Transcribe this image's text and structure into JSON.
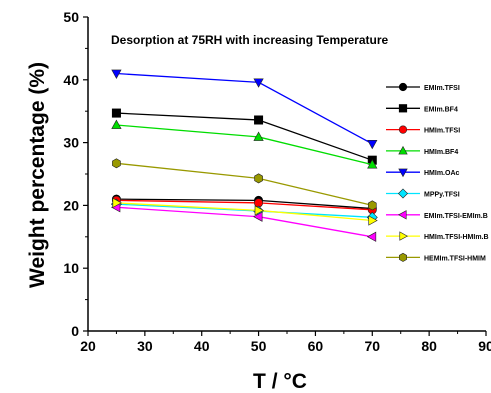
{
  "chart_data": {
    "type": "line",
    "title": "Desorption at 75RH with increasing Temperature",
    "xlabel": "T / °C",
    "ylabel": "Weight percentage (%)",
    "xlim": [
      20,
      90
    ],
    "ylim": [
      0,
      50
    ],
    "xticks": [
      20,
      30,
      40,
      50,
      60,
      70,
      80,
      90
    ],
    "yticks": [
      0,
      10,
      20,
      30,
      40,
      50
    ],
    "x": [
      25,
      50,
      70
    ],
    "legend_position": "right",
    "series": [
      {
        "name": "EMIm.TFSI",
        "color": "#000000",
        "marker": "circle",
        "values": [
          21.0,
          20.8,
          19.5
        ]
      },
      {
        "name": "EMIm.BF4",
        "color": "#000000",
        "marker": "square",
        "values": [
          34.7,
          33.6,
          27.2
        ]
      },
      {
        "name": "HMIm.TFSI",
        "color": "#ff0000",
        "marker": "circle",
        "values": [
          20.8,
          20.4,
          19.3
        ]
      },
      {
        "name": "HMIm.BF4",
        "color": "#00dd00",
        "marker": "triangle-up",
        "values": [
          32.8,
          30.9,
          26.5
        ]
      },
      {
        "name": "HMIm.OAc",
        "color": "#0000ff",
        "marker": "triangle-down",
        "values": [
          41.0,
          39.6,
          29.8
        ]
      },
      {
        "name": "MPPy.TFSI",
        "color": "#00e5ff",
        "marker": "diamond",
        "values": [
          20.2,
          19.1,
          18.1
        ]
      },
      {
        "name": "EMIm.TFSI-EMIm.B",
        "color": "#ff00ff",
        "marker": "triangle-left",
        "values": [
          19.7,
          18.2,
          15.0
        ]
      },
      {
        "name": "HMIm.TFSI-HMIm.B",
        "color": "#ffff00",
        "marker": "triangle-right",
        "values": [
          20.4,
          19.2,
          17.6
        ]
      },
      {
        "name": "HEMIm.TFSI-HMIM",
        "color": "#999900",
        "marker": "hexagon",
        "values": [
          26.7,
          24.3,
          20.0
        ]
      }
    ]
  }
}
